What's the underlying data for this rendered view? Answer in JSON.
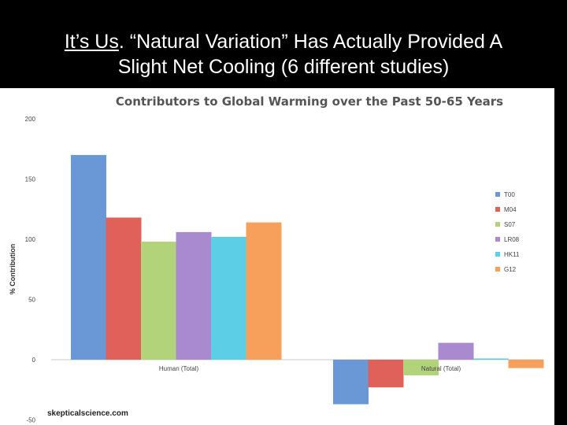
{
  "slide": {
    "title_underlined": "It’s Us",
    "title_rest_line1": ". “Natural Variation” Has Actually Provided A",
    "title_line2": "Slight Net Cooling (6 different studies)"
  },
  "chart_data": {
    "type": "bar",
    "title": "Contributors to Global Warming over the Past 50-65 Years",
    "ylabel": "% Contribution",
    "xlabel": "",
    "ylim": [
      -50,
      200
    ],
    "yticks": [
      "200",
      "150",
      "100",
      "50",
      "0",
      "-50"
    ],
    "ytick_values": [
      200,
      150,
      100,
      50,
      0,
      -50
    ],
    "categories": [
      "Human (Total)",
      "Natural (Total)"
    ],
    "series": [
      {
        "name": "T00",
        "color": "#6a97d6",
        "values": [
          170,
          -37
        ]
      },
      {
        "name": "M04",
        "color": "#e0605a",
        "values": [
          118,
          -23
        ]
      },
      {
        "name": "S07",
        "color": "#b3d37a",
        "values": [
          98,
          -13
        ]
      },
      {
        "name": "LR08",
        "color": "#a98ad0",
        "values": [
          106,
          14
        ]
      },
      {
        "name": "HK11",
        "color": "#5ccfe6",
        "values": [
          102,
          1
        ]
      },
      {
        "name": "G12",
        "color": "#f6a05c",
        "values": [
          114,
          -7
        ]
      }
    ],
    "legend_position": "right",
    "grid": false,
    "source": "skepticalscience.com"
  }
}
